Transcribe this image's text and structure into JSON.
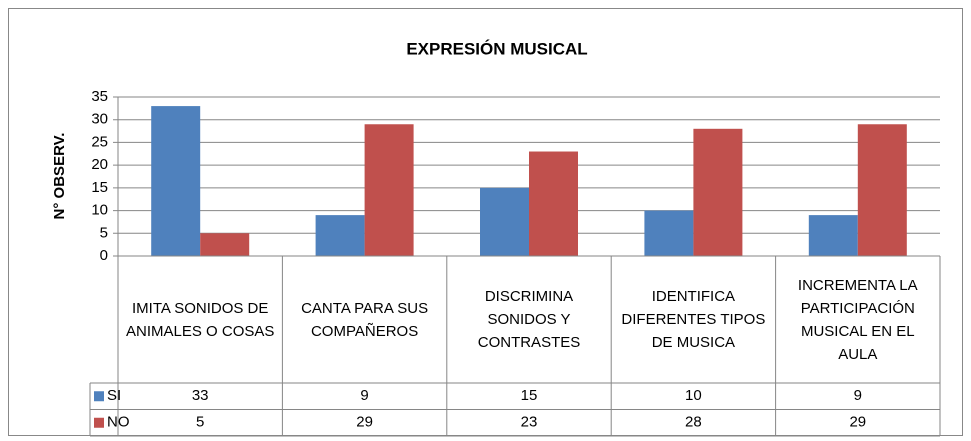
{
  "chart_data": {
    "type": "bar",
    "title": "EXPRESIÓN MUSICAL",
    "y_label": "N° OBSERV.",
    "categories": [
      "IMITA SONIDOS DE ANIMALES O COSAS",
      "CANTA PARA SUS COMPAÑEROS",
      "DISCRIMINA SONIDOS Y CONTRASTES",
      "IDENTIFICA DIFERENTES TIPOS DE MUSICA",
      "INCREMENTA LA PARTICIPACIÓN MUSICAL EN EL AULA"
    ],
    "series": [
      {
        "name": "SI",
        "color": "#4f81bd",
        "values": [
          33,
          9,
          15,
          10,
          9
        ]
      },
      {
        "name": "NO",
        "color": "#c0504d",
        "values": [
          5,
          29,
          23,
          28,
          29
        ]
      }
    ],
    "ylim": [
      0,
      35
    ],
    "yticks": [
      0,
      5,
      10,
      15,
      20,
      25,
      30,
      35
    ],
    "grid": true,
    "data_table": true
  }
}
